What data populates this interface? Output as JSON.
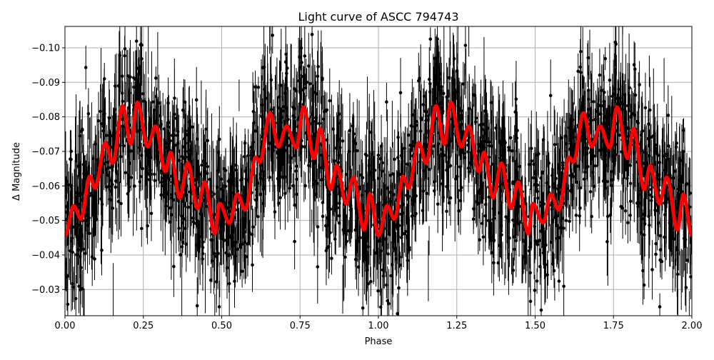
{
  "chart_data": {
    "type": "scatter",
    "title": "Light curve of ASCC 794743",
    "xlabel": "Phase",
    "ylabel": "Δ Magnitude",
    "xlim": [
      0,
      2
    ],
    "ylim": [
      -0.1062,
      -0.0224
    ],
    "y_inverted": true,
    "grid": true,
    "xticks": [
      "0.00",
      "0.25",
      "0.50",
      "0.75",
      "1.00",
      "1.25",
      "1.50",
      "1.75",
      "2.00"
    ],
    "yticks": [
      "-0.10",
      "-0.09",
      "-0.08",
      "-0.07",
      "-0.06",
      "-0.05",
      "-0.04",
      "-0.03"
    ],
    "colors": {
      "observations": "#000000",
      "model": "#ff0000",
      "grid": "#b0b0b0"
    },
    "period_in_phase": 1,
    "series": [
      {
        "kind": "errorbar-scatter",
        "color": "#000000"
      },
      {
        "kind": "line",
        "color": "#ff0000",
        "x": [
          0.0,
          0.028,
          0.051,
          0.079,
          0.096,
          0.129,
          0.152,
          0.184,
          0.21,
          0.231,
          0.264,
          0.289,
          0.32,
          0.337,
          0.366,
          0.392,
          0.423,
          0.446,
          0.478,
          0.493,
          0.525,
          0.55,
          0.575,
          0.609,
          0.622,
          0.654,
          0.681,
          0.707,
          0.738,
          0.761,
          0.795,
          0.814,
          0.848,
          0.867,
          0.897,
          0.92,
          0.954,
          0.973,
          1.0
        ],
        "y": [
          -0.0456,
          -0.0542,
          -0.0504,
          -0.0628,
          -0.0594,
          -0.0725,
          -0.0666,
          -0.0832,
          -0.0721,
          -0.0842,
          -0.0714,
          -0.0773,
          -0.0642,
          -0.0697,
          -0.0566,
          -0.0666,
          -0.0535,
          -0.0611,
          -0.0462,
          -0.0549,
          -0.0493,
          -0.0576,
          -0.0531,
          -0.0683,
          -0.0669,
          -0.0811,
          -0.0714,
          -0.0773,
          -0.0711,
          -0.0828,
          -0.068,
          -0.0766,
          -0.059,
          -0.0659,
          -0.0549,
          -0.0625,
          -0.0473,
          -0.0576,
          -0.0456
        ]
      }
    ]
  }
}
